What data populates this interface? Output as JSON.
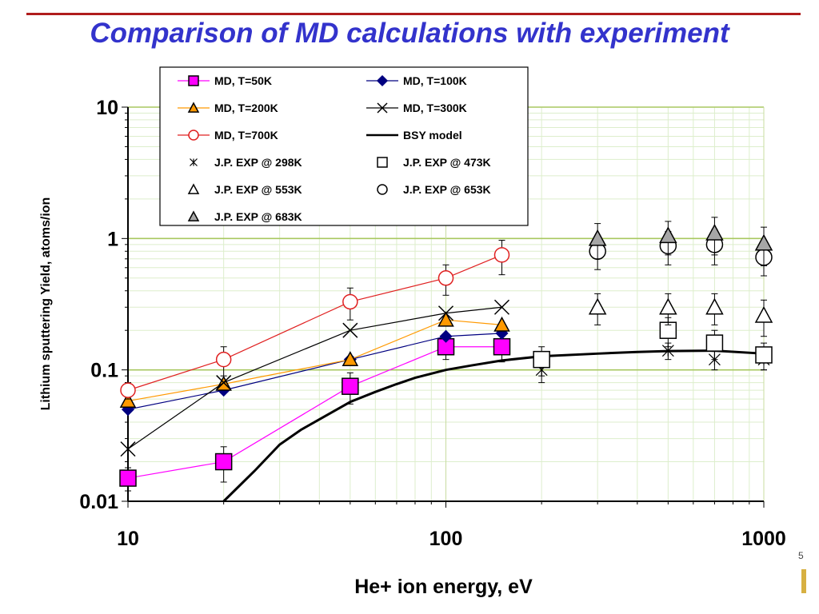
{
  "page": {
    "title": "Comparison of MD calculations with experiment"
  },
  "chart_data": {
    "type": "scatter",
    "xlabel": "He+ ion energy, eV",
    "ylabel": "Lithium sputtering Yield, atoms/ion",
    "xscale": "log",
    "yscale": "log",
    "xlim": [
      10,
      1000
    ],
    "ylim": [
      0.01,
      10
    ],
    "x_ticks": [
      "10",
      "100",
      "1000"
    ],
    "y_ticks": [
      "0.01",
      "0.1",
      "1",
      "10"
    ],
    "grid": true,
    "legend_position": "top-left",
    "series": [
      {
        "name": "MD, T=50K",
        "marker": "square",
        "color": "#ff00ff",
        "fill": "#ff00ff",
        "line": true,
        "points": [
          [
            10,
            0.015
          ],
          [
            20,
            0.02
          ],
          [
            50,
            0.075
          ],
          [
            100,
            0.15
          ],
          [
            150,
            0.15
          ]
        ],
        "err": [
          0.003,
          0.006,
          0.02,
          0.03,
          0.035
        ]
      },
      {
        "name": "MD, T=100K",
        "marker": "diamond",
        "color": "#000080",
        "fill": "#000080",
        "line": true,
        "points": [
          [
            10,
            0.05
          ],
          [
            20,
            0.07
          ],
          [
            50,
            0.12
          ],
          [
            100,
            0.18
          ],
          [
            150,
            0.19
          ]
        ]
      },
      {
        "name": "MD, T=200K",
        "marker": "triangle",
        "color": "#ff9900",
        "fill": "#ff9900",
        "line": true,
        "points": [
          [
            10,
            0.058
          ],
          [
            20,
            0.078
          ],
          [
            50,
            0.12
          ],
          [
            100,
            0.24
          ],
          [
            150,
            0.22
          ]
        ]
      },
      {
        "name": "MD, T=300K",
        "marker": "x",
        "color": "#000000",
        "fill": "none",
        "line": true,
        "points": [
          [
            10,
            0.025
          ],
          [
            20,
            0.08
          ],
          [
            50,
            0.2
          ],
          [
            100,
            0.27
          ],
          [
            150,
            0.3
          ]
        ]
      },
      {
        "name": "MD, T=700K",
        "marker": "circle",
        "color": "#e02020",
        "fill": "#ffffff",
        "line": true,
        "points": [
          [
            10,
            0.07
          ],
          [
            20,
            0.12
          ],
          [
            50,
            0.33
          ],
          [
            100,
            0.5
          ],
          [
            150,
            0.75
          ]
        ],
        "err": [
          0.01,
          0.03,
          0.09,
          0.13,
          0.22
        ]
      },
      {
        "name": "BSY model",
        "marker": "none",
        "color": "#000000",
        "fill": "none",
        "line": true,
        "thick": true,
        "points": [
          [
            20,
            0.01
          ],
          [
            25,
            0.017
          ],
          [
            30,
            0.027
          ],
          [
            35,
            0.035
          ],
          [
            40,
            0.042
          ],
          [
            50,
            0.057
          ],
          [
            60,
            0.068
          ],
          [
            70,
            0.078
          ],
          [
            80,
            0.087
          ],
          [
            100,
            0.1
          ],
          [
            120,
            0.108
          ],
          [
            150,
            0.118
          ],
          [
            200,
            0.127
          ],
          [
            300,
            0.133
          ],
          [
            400,
            0.137
          ],
          [
            500,
            0.139
          ],
          [
            700,
            0.14
          ],
          [
            1000,
            0.133
          ]
        ]
      },
      {
        "name": "J.P. EXP @ 298K",
        "marker": "asterisk",
        "color": "#000000",
        "fill": "none",
        "line": false,
        "points": [
          [
            200,
            0.1
          ],
          [
            500,
            0.14
          ],
          [
            700,
            0.12
          ],
          [
            1000,
            0.12
          ]
        ],
        "err": [
          0.02,
          0.02,
          0.02,
          0.02
        ]
      },
      {
        "name": "J.P. EXP @ 473K",
        "marker": "square",
        "color": "#000000",
        "fill": "#ffffff",
        "line": false,
        "points": [
          [
            200,
            0.12
          ],
          [
            500,
            0.2
          ],
          [
            700,
            0.16
          ],
          [
            1000,
            0.13
          ]
        ],
        "err": [
          0.03,
          0.05,
          0.04,
          0.03
        ]
      },
      {
        "name": "J.P. EXP @ 553K",
        "marker": "triangle",
        "color": "#000000",
        "fill": "#ffffff",
        "line": false,
        "points": [
          [
            300,
            0.3
          ],
          [
            500,
            0.3
          ],
          [
            700,
            0.3
          ],
          [
            1000,
            0.26
          ]
        ],
        "err": [
          0.08,
          0.08,
          0.08,
          0.08
        ]
      },
      {
        "name": "J.P. EXP @ 653K",
        "marker": "circle",
        "color": "#000000",
        "fill": "#ffffff",
        "line": false,
        "points": [
          [
            300,
            0.8
          ],
          [
            500,
            0.88
          ],
          [
            700,
            0.9
          ],
          [
            1000,
            0.72
          ]
        ],
        "err": [
          0.22,
          0.25,
          0.27,
          0.2
        ]
      },
      {
        "name": "J.P. EXP @ 683K",
        "marker": "triangle",
        "color": "#000000",
        "fill": "#a6a6a6",
        "line": false,
        "points": [
          [
            300,
            1.0
          ],
          [
            500,
            1.05
          ],
          [
            700,
            1.1
          ],
          [
            1000,
            0.92
          ]
        ],
        "err": [
          0.3,
          0.3,
          0.35,
          0.3
        ]
      }
    ]
  }
}
